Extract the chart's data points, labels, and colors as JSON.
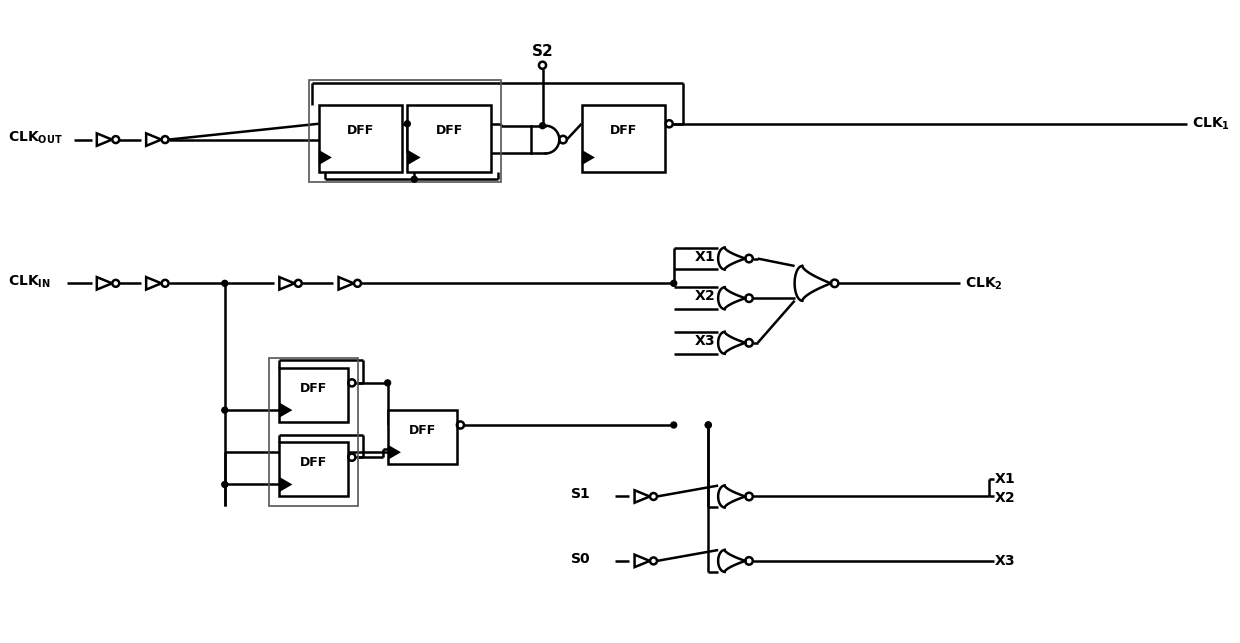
{
  "bg_color": "#ffffff",
  "line_color": "#000000",
  "lw": 1.8,
  "fig_width": 12.4,
  "fig_height": 6.43,
  "dpi": 100,
  "xlim": [
    0,
    124
  ],
  "ylim": [
    0,
    64.3
  ]
}
